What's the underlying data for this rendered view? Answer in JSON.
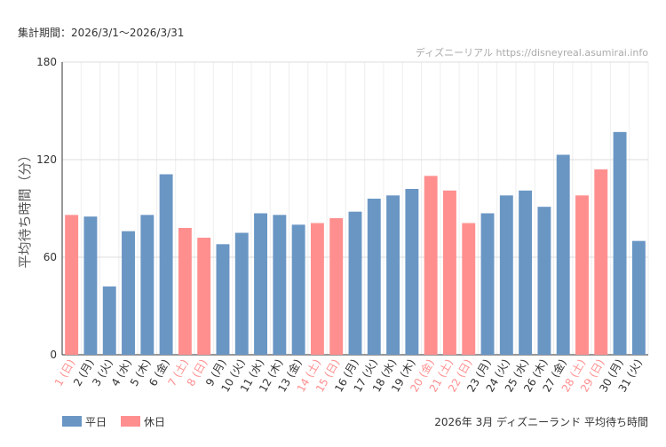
{
  "chart_data": {
    "type": "bar",
    "period": "集計期間：2026/3/1～2026/3/31",
    "watermark": "ディズニーリアル https://disneyreal.asumirai.info",
    "y_label": "平均待ち時間（分）",
    "caption": "2026年 3月 ディズニーランド 平均待ち時間",
    "categories": [
      "1 (日)",
      "2 (月)",
      "3 (火)",
      "4 (水)",
      "5 (木)",
      "6 (金)",
      "7 (土)",
      "8 (日)",
      "9 (月)",
      "10 (火)",
      "11 (水)",
      "12 (木)",
      "13 (金)",
      "14 (土)",
      "15 (日)",
      "16 (月)",
      "17 (火)",
      "18 (水)",
      "19 (木)",
      "20 (金)",
      "21 (土)",
      "22 (日)",
      "23 (月)",
      "24 (火)",
      "25 (水)",
      "26 (木)",
      "27 (金)",
      "28 (土)",
      "29 (日)",
      "30 (月)",
      "31 (火)"
    ],
    "series": [
      {
        "name": "平日",
        "color": "#6a96c4",
        "values": [
          null,
          85,
          42,
          76,
          86,
          111,
          null,
          null,
          68,
          75,
          87,
          86,
          80,
          null,
          null,
          88,
          96,
          98,
          102,
          null,
          null,
          null,
          87,
          98,
          101,
          91,
          123,
          null,
          null,
          137,
          70
        ]
      },
      {
        "name": "休日",
        "color": "#ff8f8f",
        "values": [
          86,
          null,
          null,
          null,
          null,
          null,
          78,
          72,
          null,
          null,
          null,
          null,
          null,
          81,
          84,
          null,
          null,
          null,
          null,
          110,
          101,
          81,
          null,
          null,
          null,
          null,
          null,
          98,
          114,
          null,
          null
        ]
      }
    ],
    "ylim": [
      0,
      180
    ],
    "yticks": [
      0,
      60,
      120,
      180
    ],
    "grid": true
  }
}
